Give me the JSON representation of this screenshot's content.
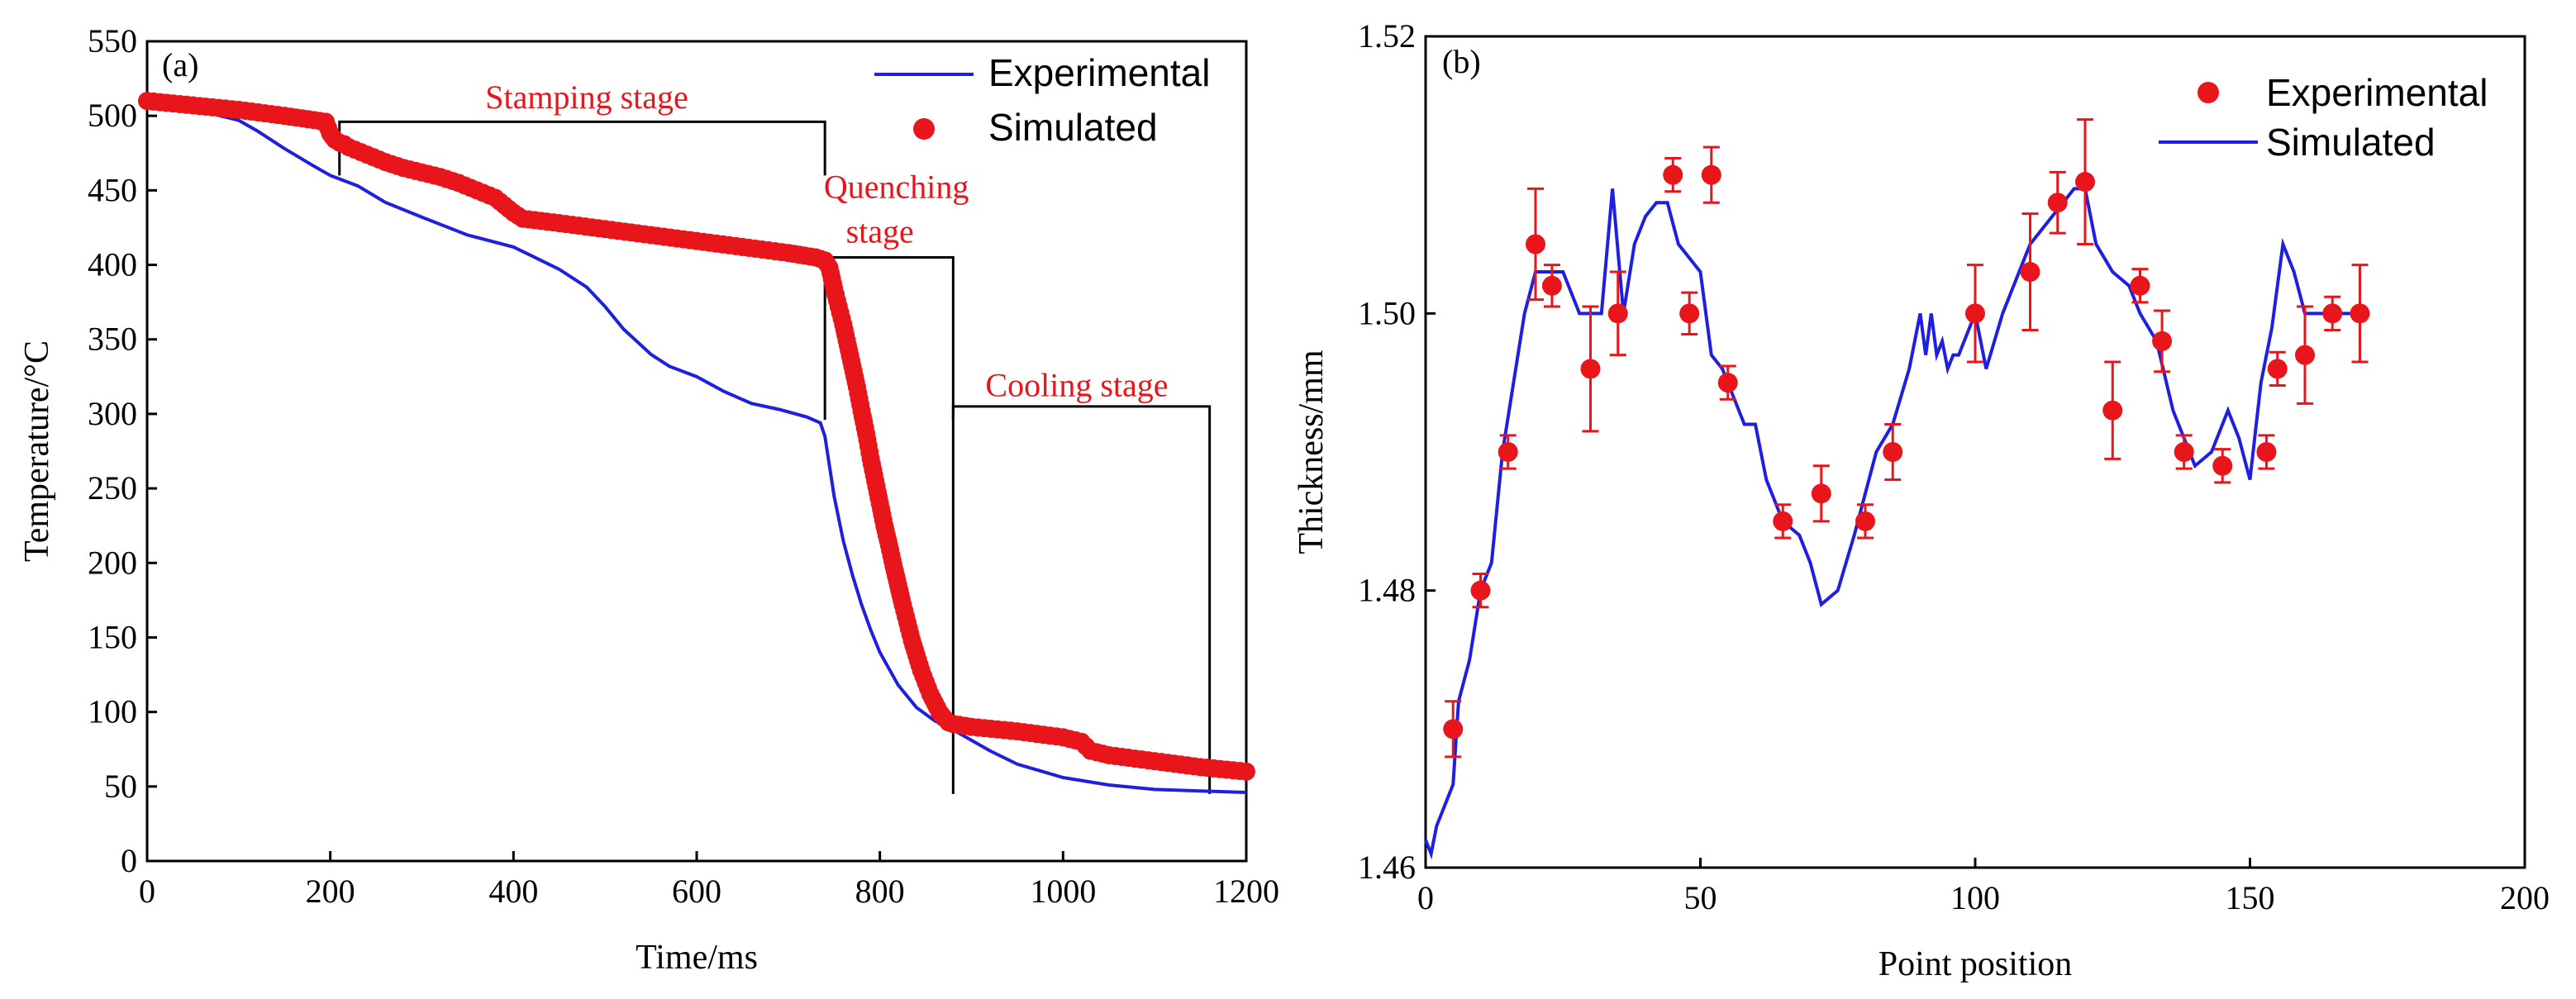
{
  "colors": {
    "experimental_line": "#1f1fe0",
    "simulated_marker": "#e8151b",
    "stage_box": "#000000",
    "stage_text": "#e8151b"
  },
  "chart_data": [
    {
      "type": "line",
      "panel_label": "(a)",
      "xlabel": "Time/ms",
      "ylabel": "Temperature/°C",
      "xlim": [
        0,
        1200
      ],
      "ylim": [
        0,
        550
      ],
      "x_ticks": [
        "0",
        "200",
        "400",
        "600",
        "800",
        "1000",
        "1200"
      ],
      "y_ticks": [
        "0",
        "50",
        "100",
        "150",
        "200",
        "250",
        "300",
        "350",
        "400",
        "450",
        "500",
        "550"
      ],
      "legend_position": "top-right",
      "legend": [
        "Experimental",
        "Simulated"
      ],
      "series": [
        {
          "name": "Experimental",
          "style": "line",
          "x": [
            0,
            50,
            80,
            100,
            120,
            150,
            180,
            200,
            230,
            260,
            300,
            350,
            400,
            420,
            450,
            480,
            500,
            520,
            550,
            570,
            600,
            630,
            660,
            690,
            720,
            735,
            740,
            745,
            750,
            760,
            770,
            780,
            790,
            800,
            820,
            840,
            860,
            880,
            900,
            920,
            950,
            1000,
            1050,
            1100,
            1150,
            1200
          ],
          "y": [
            510,
            505,
            500,
            497,
            490,
            478,
            467,
            460,
            453,
            442,
            432,
            420,
            412,
            406,
            397,
            385,
            372,
            357,
            340,
            332,
            325,
            315,
            307,
            303,
            298,
            294,
            285,
            265,
            245,
            215,
            192,
            172,
            155,
            140,
            118,
            103,
            94,
            88,
            81,
            74,
            65,
            56,
            51,
            48,
            47,
            46
          ]
        },
        {
          "name": "Simulated",
          "style": "markers",
          "x": [
            0,
            50,
            100,
            150,
            195,
            200,
            205,
            210,
            215,
            220,
            240,
            260,
            280,
            300,
            320,
            340,
            360,
            380,
            400,
            410,
            450,
            500,
            550,
            600,
            650,
            700,
            730,
            740,
            745,
            750,
            755,
            760,
            765,
            770,
            775,
            780,
            785,
            790,
            795,
            800,
            805,
            810,
            815,
            820,
            825,
            830,
            835,
            840,
            845,
            850,
            855,
            860,
            865,
            870,
            875,
            880,
            900,
            950,
            1000,
            1020,
            1030,
            1050,
            1100,
            1150,
            1200
          ],
          "y": [
            510,
            507,
            504,
            500,
            496,
            488,
            484,
            482,
            481,
            479,
            474,
            469,
            465,
            462,
            459,
            455,
            450,
            445,
            435,
            431,
            428,
            424,
            420,
            416,
            412,
            408,
            405,
            403,
            398,
            384,
            372,
            360,
            346,
            332,
            318,
            302,
            287,
            270,
            255,
            240,
            225,
            212,
            198,
            185,
            172,
            160,
            148,
            138,
            128,
            120,
            112,
            106,
            100,
            96,
            93,
            92,
            90,
            87,
            83,
            80,
            74,
            71,
            67,
            63,
            60
          ]
        }
      ],
      "stage_boxes": [
        {
          "x0": 210,
          "x1": 740,
          "y_top": 496,
          "y_bottom": 460
        },
        {
          "x0": 740,
          "x1": 880,
          "y_top": 405,
          "y_bottom": 296
        },
        {
          "x0": 880,
          "x1": 1160,
          "y_top": 305,
          "y_bottom": 45
        }
      ],
      "annotations": [
        {
          "text": "Stamping stage",
          "x": 480,
          "y": 505
        },
        {
          "text": "Quenching",
          "x": 818,
          "y": 445
        },
        {
          "text": "stage",
          "x": 800,
          "y": 415
        },
        {
          "text": "Cooling stage",
          "x": 1015,
          "y": 312
        }
      ]
    },
    {
      "type": "scatter",
      "panel_label": "(b)",
      "xlabel": "Point position",
      "ylabel": "Thickness/mm",
      "xlim": [
        0,
        200
      ],
      "ylim": [
        1.46,
        1.52
      ],
      "x_ticks": [
        "0",
        "50",
        "100",
        "150",
        "200"
      ],
      "y_ticks": [
        "1.46",
        "1.48",
        "1.50",
        "1.52"
      ],
      "legend_position": "top-right",
      "legend": [
        "Experimental",
        "Simulated"
      ],
      "series": [
        {
          "name": "Experimental",
          "style": "markers-with-error-bars",
          "x": [
            5,
            10,
            15,
            20,
            23,
            30,
            35,
            45,
            48,
            52,
            55,
            65,
            72,
            80,
            85,
            100,
            110,
            115,
            120,
            125,
            130,
            134,
            138,
            145,
            153,
            155,
            160,
            165,
            170
          ],
          "y": [
            1.47,
            1.48,
            1.49,
            1.505,
            1.502,
            1.496,
            1.5,
            1.51,
            1.5,
            1.51,
            1.495,
            1.485,
            1.487,
            1.485,
            1.49,
            1.5,
            1.503,
            1.508,
            1.5095,
            1.493,
            1.502,
            1.498,
            1.49,
            1.489,
            1.49,
            1.496,
            1.497,
            1.5,
            1.5
          ],
          "err": [
            0.002,
            0.0012,
            0.0012,
            0.004,
            0.0015,
            0.0045,
            0.003,
            0.0012,
            0.0015,
            0.002,
            0.0012,
            0.0012,
            0.002,
            0.0012,
            0.002,
            0.0035,
            0.0042,
            0.0022,
            0.0045,
            0.0035,
            0.0012,
            0.0022,
            0.0012,
            0.0012,
            0.0012,
            0.0012,
            0.0035,
            0.0012,
            0.0035
          ]
        },
        {
          "name": "Simulated",
          "style": "line",
          "x": [
            0,
            1,
            2,
            3,
            4,
            5,
            6,
            8,
            10,
            12,
            14,
            16,
            18,
            20,
            22,
            25,
            28,
            30,
            32,
            34,
            36,
            38,
            40,
            42,
            44,
            46,
            48,
            50,
            52,
            54,
            56,
            58,
            60,
            62,
            65,
            68,
            70,
            72,
            75,
            78,
            80,
            82,
            85,
            88,
            90,
            91,
            92,
            93,
            94,
            95,
            96,
            97,
            98,
            100,
            102,
            105,
            108,
            110,
            112,
            114,
            116,
            118,
            120,
            122,
            125,
            128,
            130,
            133,
            136,
            140,
            143,
            146,
            148,
            150,
            152,
            154,
            156,
            158,
            160,
            165,
            170
          ],
          "y": [
            1.462,
            1.461,
            1.463,
            1.464,
            1.465,
            1.466,
            1.472,
            1.475,
            1.48,
            1.482,
            1.49,
            1.495,
            1.5,
            1.503,
            1.503,
            1.503,
            1.5,
            1.5,
            1.5,
            1.509,
            1.5,
            1.505,
            1.507,
            1.508,
            1.508,
            1.505,
            1.504,
            1.503,
            1.497,
            1.496,
            1.494,
            1.492,
            1.492,
            1.488,
            1.485,
            1.484,
            1.482,
            1.479,
            1.48,
            1.484,
            1.487,
            1.49,
            1.492,
            1.496,
            1.5,
            1.497,
            1.5,
            1.497,
            1.498,
            1.496,
            1.497,
            1.497,
            1.498,
            1.5,
            1.496,
            1.5,
            1.503,
            1.505,
            1.506,
            1.507,
            1.508,
            1.509,
            1.509,
            1.505,
            1.503,
            1.502,
            1.5,
            1.498,
            1.493,
            1.489,
            1.49,
            1.493,
            1.491,
            1.488,
            1.495,
            1.499,
            1.505,
            1.503,
            1.5,
            1.5,
            1.5
          ]
        }
      ]
    }
  ]
}
